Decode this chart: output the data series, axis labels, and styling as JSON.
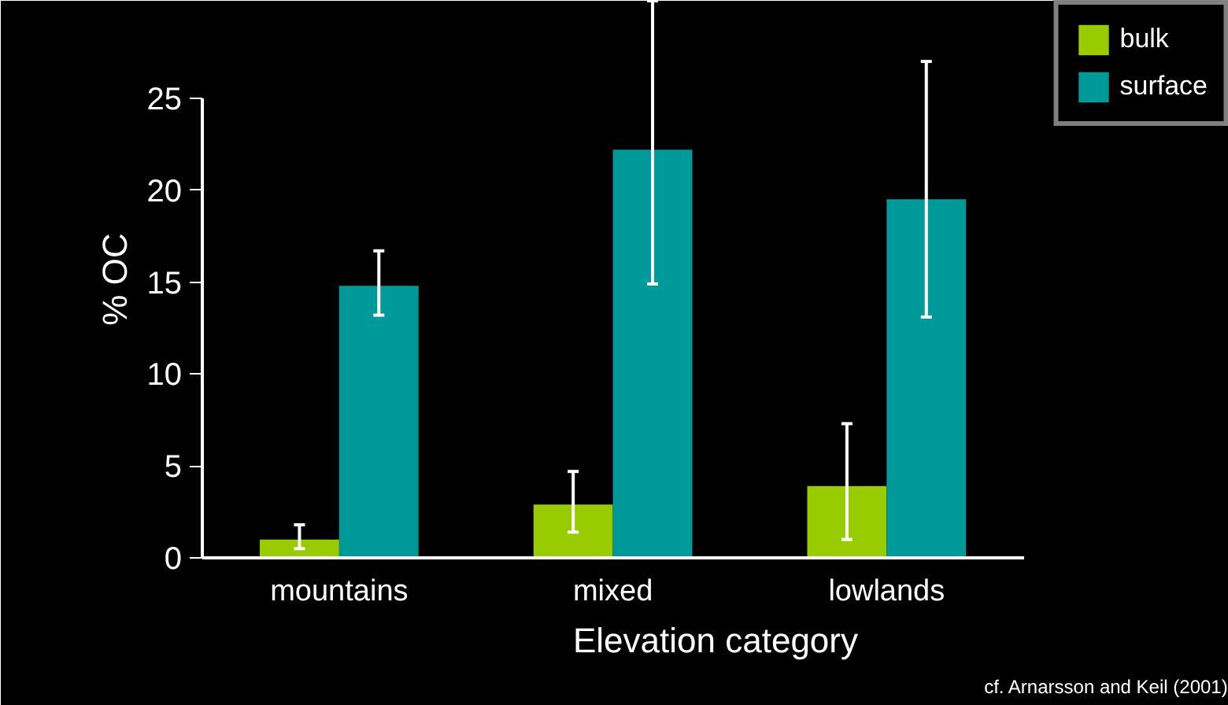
{
  "chart_data": {
    "type": "bar",
    "xlabel": "Elevation category",
    "ylabel": "% OC",
    "categories": [
      "mountains",
      "mixed",
      "lowlands"
    ],
    "series": [
      {
        "name": "bulk",
        "color": "#99cc00",
        "values": [
          1.0,
          2.9,
          3.9
        ],
        "errors": [
          [
            0.5,
            1.8
          ],
          [
            1.4,
            4.7
          ],
          [
            1.0,
            7.3
          ]
        ]
      },
      {
        "name": "surface",
        "color": "#009999",
        "values": [
          14.8,
          22.2,
          19.5
        ],
        "errors": [
          [
            13.2,
            16.7
          ],
          [
            14.9,
            30.3
          ],
          [
            13.1,
            27.0
          ]
        ]
      }
    ],
    "ylim": [
      0,
      30.3
    ],
    "yticks": [
      0,
      5,
      10,
      15,
      20,
      25
    ],
    "grid": false,
    "legend": "top right",
    "annotations": [
      "cf. Arnarsson and Keil (2001)"
    ]
  }
}
